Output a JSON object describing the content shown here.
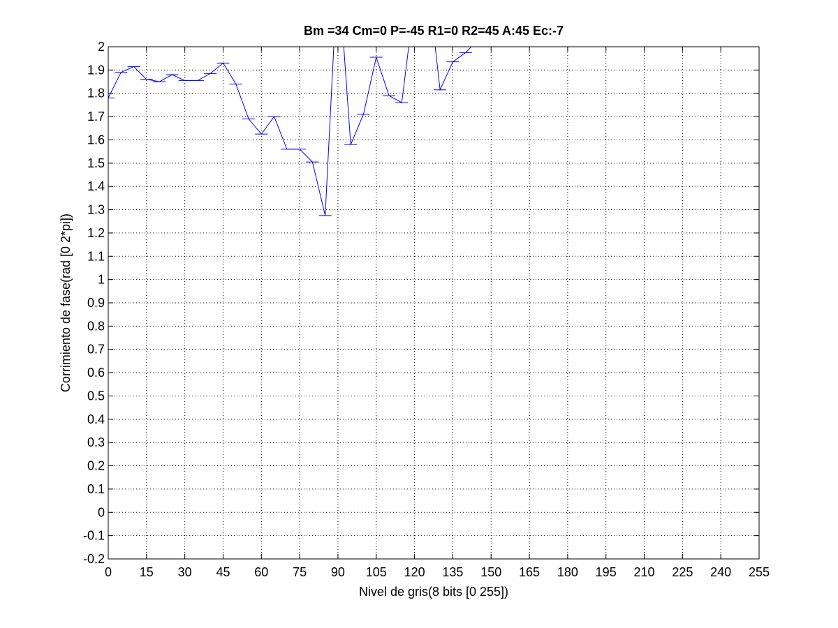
{
  "chart_data": {
    "type": "line",
    "title": "Bm =34  Cm=0  P=-45  R1=0  R2=45  A:45  Ec:-7",
    "xlabel": "Nivel de gris(8 bits [0 255])",
    "ylabel": "Corrimiento de fase(rad [0 2*pi])",
    "xlim": [
      0,
      255
    ],
    "ylim": [
      -0.2,
      2
    ],
    "grid": true,
    "x_ticks": [
      "0",
      "15",
      "30",
      "45",
      "60",
      "75",
      "90",
      "105",
      "120",
      "135",
      "150",
      "165",
      "180",
      "195",
      "210",
      "225",
      "240",
      "255"
    ],
    "y_ticks": [
      "-0.2",
      "-0.1",
      "0",
      "0.1",
      "0.2",
      "0.3",
      "0.4",
      "0.5",
      "0.6",
      "0.7",
      "0.8",
      "0.9",
      "1",
      "1.1",
      "1.2",
      "1.3",
      "1.4",
      "1.5",
      "1.6",
      "1.7",
      "1.8",
      "1.9",
      "2"
    ],
    "series": [
      {
        "color": "#0000ff",
        "marker": "horizontal-bar",
        "x": [
          0,
          5,
          10,
          15,
          20,
          25,
          30,
          35,
          40,
          45,
          50,
          55,
          60,
          65,
          70,
          75,
          80,
          85,
          90,
          95,
          100,
          105,
          110,
          115,
          120,
          125,
          130,
          135,
          140,
          145
        ],
        "y": [
          1.78,
          1.89,
          1.915,
          1.86,
          1.85,
          1.88,
          1.855,
          1.855,
          1.885,
          1.93,
          1.84,
          1.69,
          1.625,
          1.7,
          1.56,
          1.56,
          1.505,
          1.275,
          2.35,
          1.58,
          1.71,
          1.955,
          1.79,
          1.76,
          2.2,
          2.3,
          1.815,
          1.935,
          1.975,
          2.03
        ]
      }
    ]
  }
}
